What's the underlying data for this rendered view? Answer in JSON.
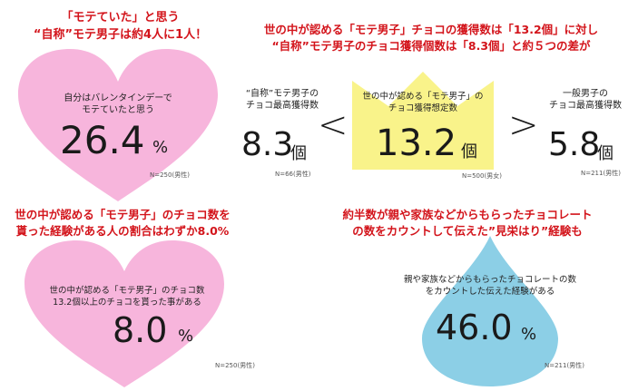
{
  "top_left": {
    "headline_1": "「モテていた」と思う",
    "headline_2": "“自称”モテ男子は約4人に1人！",
    "label_1": "自分はバレンタインデーで",
    "label_2": "モテていたと思う",
    "value": "26.4",
    "unit": "%",
    "sample": "N=250(男性)",
    "fill_color": "#f7b5dc"
  },
  "top_right": {
    "headline_1": "世の中が認める「モテ男子」チョコの獲得数は「13.2個」に対し",
    "headline_2": "“自称”モテ男子のチョコ獲得個数は「8.3個」と約５つの差が",
    "self": {
      "label_1": "“自称”モテ男子の",
      "label_2": "チョコ最高獲得数",
      "value": "8.3",
      "unit": "個",
      "sample": "N=66(男性)"
    },
    "lt": "<",
    "crown": {
      "label_1": "世の中が認める「モテ男子」の",
      "label_2": "チョコ獲得想定数",
      "value": "13.2",
      "unit": "個",
      "sample": "N=500(男女)",
      "fill_color": "#f9f38a"
    },
    "gt": ">",
    "general": {
      "label_1": "一般男子の",
      "label_2": "チョコ最高獲得数",
      "value": "5.8",
      "unit": "個",
      "sample": "N=211(男性)"
    }
  },
  "bottom_left": {
    "headline_1": "世の中が認める「モテ男子」のチョコ数を",
    "headline_2": "貰った経験がある人の割合はわずか8.0%",
    "label_1": "世の中が認める「モテ男子」のチョコ数",
    "label_2": "13.2個以上のチョコを貰った事がある",
    "value": "8.0",
    "unit": "%",
    "sample": "N=250(男性)",
    "fill_color": "#f7b5dc"
  },
  "bottom_right": {
    "headline_1": "約半数が親や家族などからもらったチョコレート",
    "headline_2": "の数をカウントして伝えた”見栄はり”経験も",
    "label_1": "親や家族などからもらったチョコレートの数",
    "label_2": "をカウントした伝えた経験がある",
    "value": "46.0",
    "unit": "%",
    "sample": "N=211(男性)",
    "fill_color": "#8ccfe6"
  }
}
